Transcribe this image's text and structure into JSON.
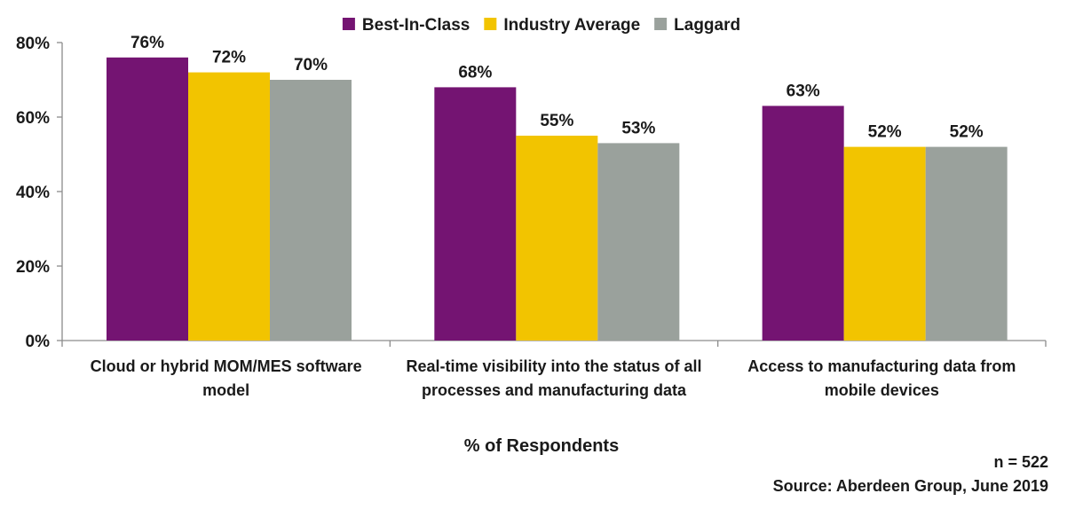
{
  "chart_data": {
    "type": "bar",
    "title": "",
    "categories": [
      [
        "Cloud or hybrid MOM/MES software",
        "model"
      ],
      [
        "Real-time visibility into the status of all",
        "processes and manufacturing data"
      ],
      [
        "Access to manufacturing data from",
        "mobile devices"
      ]
    ],
    "series": [
      {
        "name": "Best-In-Class",
        "color": "#741472",
        "values": [
          76,
          68,
          63
        ],
        "labels": [
          "76%",
          "68%",
          "63%"
        ]
      },
      {
        "name": "Industry Average",
        "color": "#f2c400",
        "values": [
          72,
          55,
          52
        ],
        "labels": [
          "72%",
          "55%",
          "52%"
        ]
      },
      {
        "name": "Laggard",
        "color": "#9aa19c",
        "values": [
          70,
          53,
          52
        ],
        "labels": [
          "70%",
          "53%",
          "52%"
        ]
      }
    ],
    "xlabel": "% of Respondents",
    "ylabel": "",
    "ylim": [
      0,
      80
    ],
    "yticks": [
      0,
      20,
      40,
      60,
      80
    ],
    "ytick_labels": [
      "0%",
      "20%",
      "40%",
      "60%",
      "80%"
    ],
    "grid": false,
    "legend_position": "top"
  },
  "notes": {
    "sample_size": "n = 522",
    "source": "Source: Aberdeen Group, June 2019"
  }
}
